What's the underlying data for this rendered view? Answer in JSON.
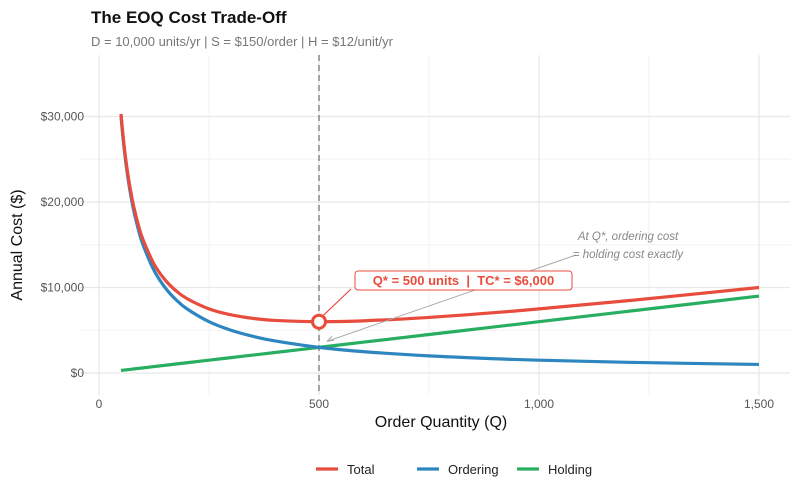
{
  "chart_data": {
    "type": "line",
    "title": "The EOQ Cost Trade-Off",
    "subtitle": "D = 10,000 units/yr | S = $150/order | H = $12/unit/yr",
    "xlabel": "Order Quantity (Q)",
    "ylabel": "Annual Cost ($)",
    "xlim": [
      0,
      1500
    ],
    "ylim": [
      0,
      30300
    ],
    "x_ticks": [
      0,
      500,
      1000,
      1500
    ],
    "x_tick_labels": [
      "0",
      "500",
      "1,000",
      "1,500"
    ],
    "y_ticks": [
      0,
      10000,
      20000,
      30000
    ],
    "y_tick_labels": [
      "$0",
      "$10,000",
      "$20,000",
      "$30,000"
    ],
    "grid": true,
    "legend_position": "bottom",
    "x": [
      50,
      55,
      60,
      65,
      70,
      75,
      80,
      90,
      100,
      125,
      150,
      175,
      200,
      250,
      300,
      350,
      400,
      500,
      600,
      750,
      900,
      1000,
      1200,
      1500
    ],
    "series": [
      {
        "name": "Total",
        "color": "#E74C3C",
        "values": [
          30300,
          27603,
          25360,
          23467,
          21849,
          20450,
          19230,
          17207,
          15600,
          12750,
          10900,
          9621,
          8700,
          7500,
          6800,
          6386,
          6150,
          6000,
          6100,
          6500,
          7067,
          7500,
          8450,
          10000
        ]
      },
      {
        "name": "Ordering",
        "color": "#2E86C1",
        "values": [
          30000,
          27273,
          25000,
          23077,
          21429,
          20000,
          18750,
          16667,
          15000,
          12000,
          10000,
          8571,
          7500,
          6000,
          5000,
          4286,
          3750,
          3000,
          2500,
          2000,
          1667,
          1500,
          1250,
          1000
        ]
      },
      {
        "name": "Holding",
        "color": "#27AE60",
        "values": [
          300,
          330,
          360,
          390,
          420,
          450,
          480,
          540,
          600,
          750,
          900,
          1050,
          1200,
          1500,
          1800,
          2100,
          2400,
          3000,
          3600,
          4500,
          5400,
          6000,
          7200,
          9000
        ]
      }
    ],
    "optimum": {
      "q": 500,
      "total_cost": 6000,
      "label": "Q* = 500 units  |  TC* = $6,000"
    },
    "annotation": {
      "line1": "At Q*, ordering cost",
      "line2": "= holding cost exactly",
      "points_to": {
        "q": 500,
        "cost": 3000
      }
    }
  }
}
